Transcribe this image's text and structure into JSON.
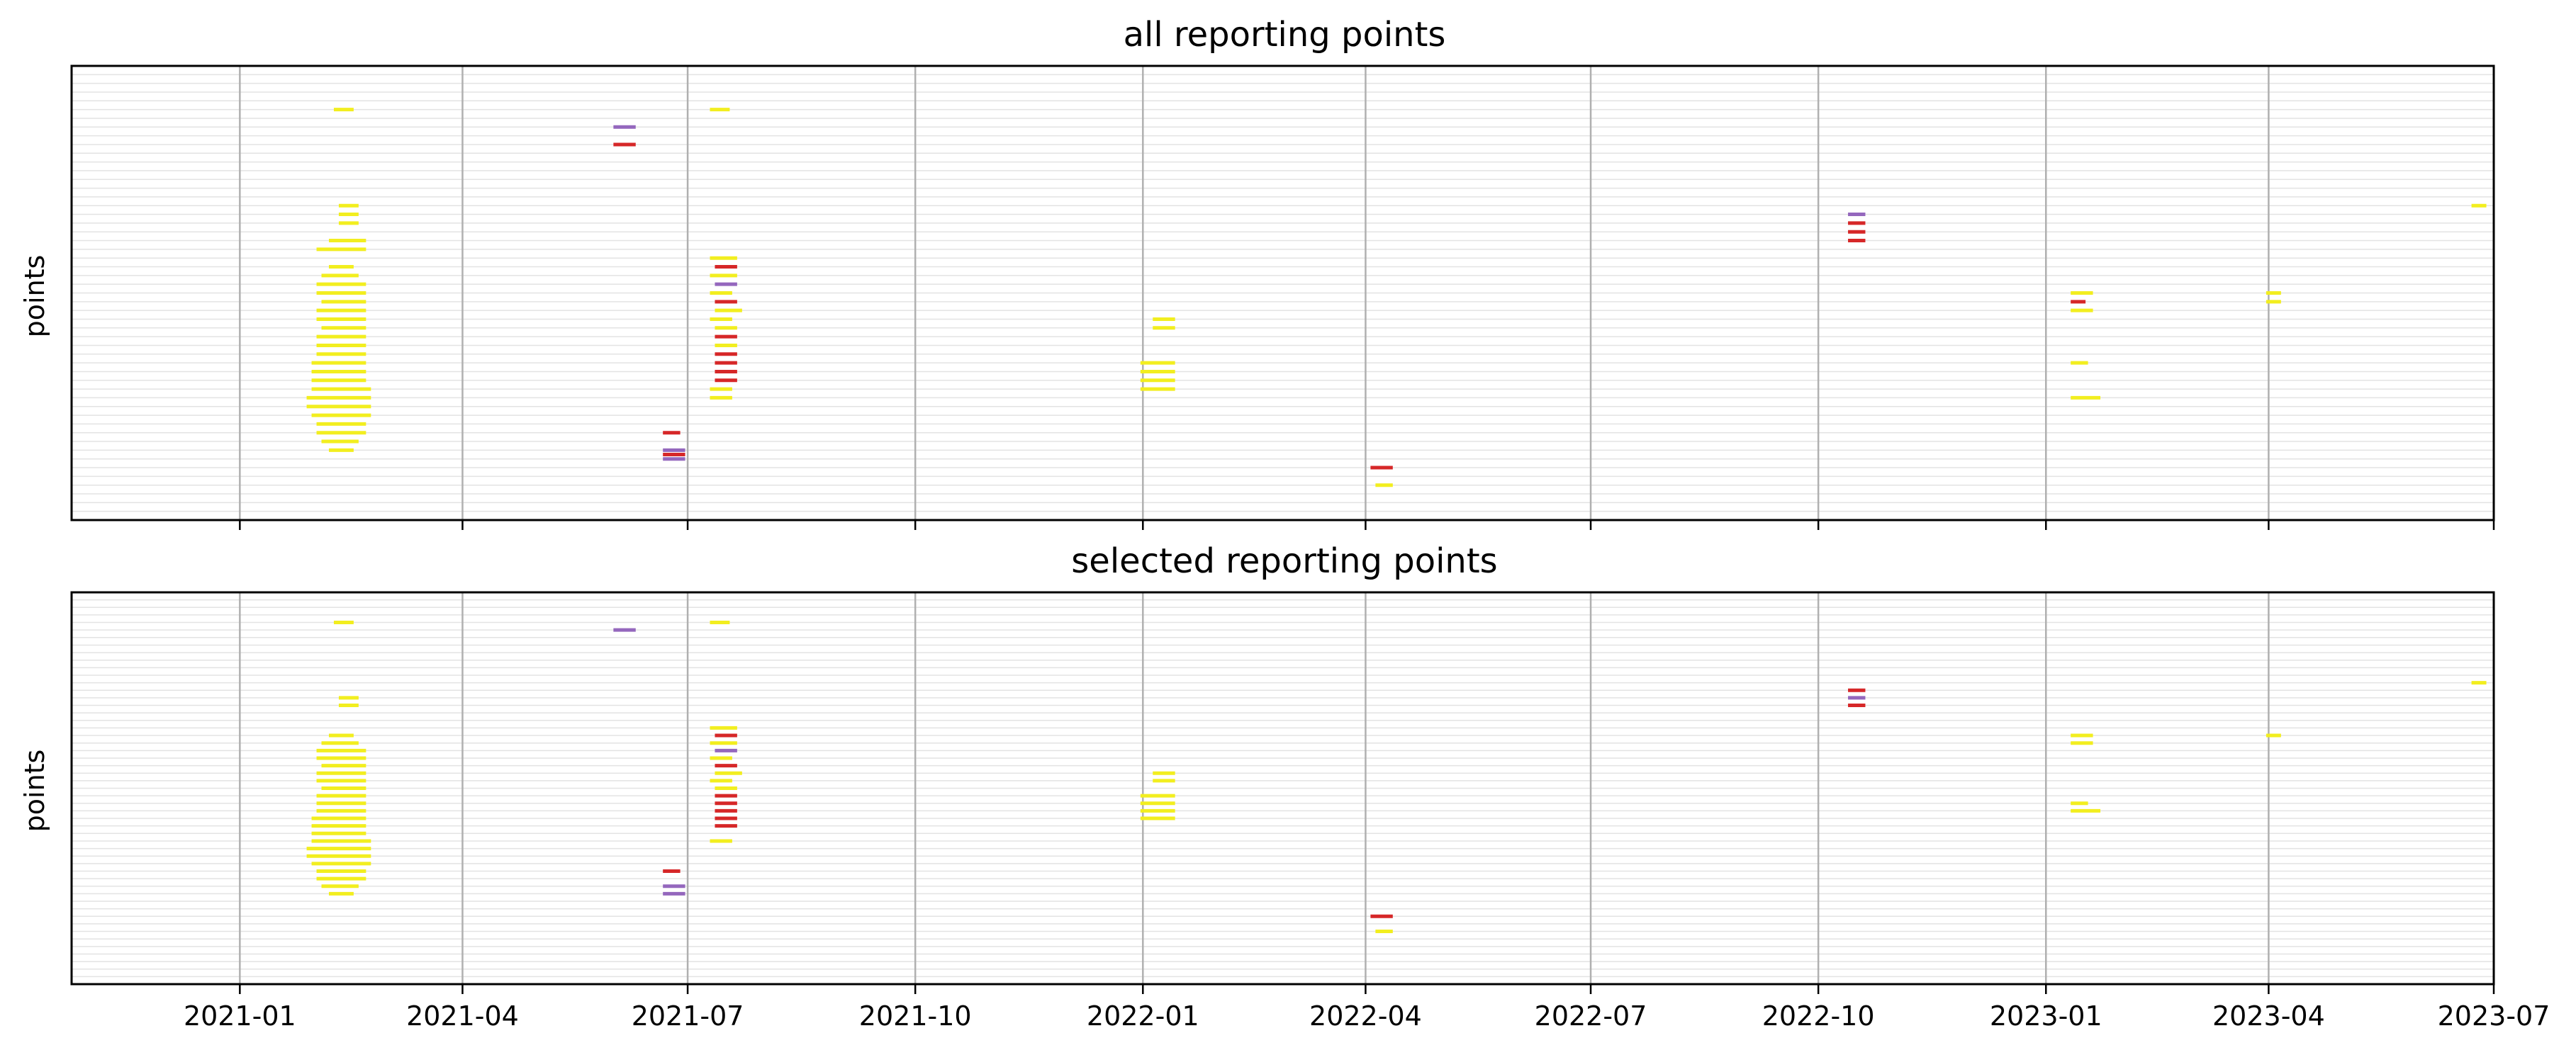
{
  "chart_data": [
    {
      "type": "timeline",
      "title": "all reporting points",
      "ylabel": "points",
      "xlabel": "",
      "xlim": [
        "2020-10-25",
        "2023-07-01"
      ],
      "ylim": [
        0,
        52
      ],
      "x_ticks": [
        "2021-01",
        "2021-04",
        "2021-07",
        "2021-10",
        "2022-01",
        "2022-04",
        "2022-07",
        "2022-10",
        "2023-01",
        "2023-04",
        "2023-07"
      ],
      "grid": "x-major vertical, y-minor horizontal",
      "colors": {
        "yellow": "#f2ee1f",
        "red": "#d62728",
        "purple": "#9467bd"
      },
      "segments": [
        {
          "y": 47,
          "start": "2021-02-08",
          "end": "2021-02-16",
          "color": "yellow"
        },
        {
          "y": 47,
          "start": "2021-07-10",
          "end": "2021-07-18",
          "color": "yellow"
        },
        {
          "y": 45,
          "start": "2021-06-01",
          "end": "2021-06-10",
          "color": "purple"
        },
        {
          "y": 43,
          "start": "2021-06-01",
          "end": "2021-06-10",
          "color": "red"
        },
        {
          "y": 36,
          "start": "2021-02-10",
          "end": "2021-02-18",
          "color": "yellow"
        },
        {
          "y": 35,
          "start": "2021-02-10",
          "end": "2021-02-18",
          "color": "yellow"
        },
        {
          "y": 34,
          "start": "2021-02-10",
          "end": "2021-02-18",
          "color": "yellow"
        },
        {
          "y": 32,
          "start": "2021-02-06",
          "end": "2021-02-21",
          "color": "yellow"
        },
        {
          "y": 31,
          "start": "2021-02-01",
          "end": "2021-02-21",
          "color": "yellow"
        },
        {
          "y": 29,
          "start": "2021-02-06",
          "end": "2021-02-16",
          "color": "yellow"
        },
        {
          "y": 28,
          "start": "2021-02-03",
          "end": "2021-02-18",
          "color": "yellow"
        },
        {
          "y": 27,
          "start": "2021-02-01",
          "end": "2021-02-21",
          "color": "yellow"
        },
        {
          "y": 26,
          "start": "2021-02-01",
          "end": "2021-02-21",
          "color": "yellow"
        },
        {
          "y": 25,
          "start": "2021-02-03",
          "end": "2021-02-21",
          "color": "yellow"
        },
        {
          "y": 24,
          "start": "2021-02-01",
          "end": "2021-02-21",
          "color": "yellow"
        },
        {
          "y": 23,
          "start": "2021-02-01",
          "end": "2021-02-21",
          "color": "yellow"
        },
        {
          "y": 22,
          "start": "2021-02-03",
          "end": "2021-02-21",
          "color": "yellow"
        },
        {
          "y": 21,
          "start": "2021-02-01",
          "end": "2021-02-21",
          "color": "yellow"
        },
        {
          "y": 20,
          "start": "2021-02-01",
          "end": "2021-02-21",
          "color": "yellow"
        },
        {
          "y": 19,
          "start": "2021-02-01",
          "end": "2021-02-21",
          "color": "yellow"
        },
        {
          "y": 18,
          "start": "2021-01-30",
          "end": "2021-02-21",
          "color": "yellow"
        },
        {
          "y": 17,
          "start": "2021-01-30",
          "end": "2021-02-21",
          "color": "yellow"
        },
        {
          "y": 16,
          "start": "2021-01-30",
          "end": "2021-02-21",
          "color": "yellow"
        },
        {
          "y": 15,
          "start": "2021-01-30",
          "end": "2021-02-23",
          "color": "yellow"
        },
        {
          "y": 14,
          "start": "2021-01-28",
          "end": "2021-02-23",
          "color": "yellow"
        },
        {
          "y": 13,
          "start": "2021-01-28",
          "end": "2021-02-23",
          "color": "yellow"
        },
        {
          "y": 12,
          "start": "2021-01-30",
          "end": "2021-02-23",
          "color": "yellow"
        },
        {
          "y": 11,
          "start": "2021-02-01",
          "end": "2021-02-21",
          "color": "yellow"
        },
        {
          "y": 10,
          "start": "2021-02-01",
          "end": "2021-02-21",
          "color": "yellow"
        },
        {
          "y": 9,
          "start": "2021-02-03",
          "end": "2021-02-18",
          "color": "yellow"
        },
        {
          "y": 8,
          "start": "2021-02-06",
          "end": "2021-02-16",
          "color": "yellow"
        },
        {
          "y": 30,
          "start": "2021-07-10",
          "end": "2021-07-21",
          "color": "yellow"
        },
        {
          "y": 29,
          "start": "2021-07-12",
          "end": "2021-07-21",
          "color": "red"
        },
        {
          "y": 28,
          "start": "2021-07-10",
          "end": "2021-07-21",
          "color": "yellow"
        },
        {
          "y": 27,
          "start": "2021-07-12",
          "end": "2021-07-21",
          "color": "purple"
        },
        {
          "y": 26,
          "start": "2021-07-10",
          "end": "2021-07-19",
          "color": "yellow"
        },
        {
          "y": 25,
          "start": "2021-07-12",
          "end": "2021-07-21",
          "color": "red"
        },
        {
          "y": 24,
          "start": "2021-07-12",
          "end": "2021-07-23",
          "color": "yellow"
        },
        {
          "y": 23,
          "start": "2021-07-10",
          "end": "2021-07-19",
          "color": "yellow"
        },
        {
          "y": 22,
          "start": "2021-07-12",
          "end": "2021-07-21",
          "color": "yellow"
        },
        {
          "y": 21,
          "start": "2021-07-12",
          "end": "2021-07-21",
          "color": "red"
        },
        {
          "y": 20,
          "start": "2021-07-12",
          "end": "2021-07-21",
          "color": "yellow"
        },
        {
          "y": 19,
          "start": "2021-07-12",
          "end": "2021-07-21",
          "color": "red"
        },
        {
          "y": 18,
          "start": "2021-07-12",
          "end": "2021-07-21",
          "color": "red"
        },
        {
          "y": 17,
          "start": "2021-07-12",
          "end": "2021-07-21",
          "color": "red"
        },
        {
          "y": 16,
          "start": "2021-07-12",
          "end": "2021-07-21",
          "color": "red"
        },
        {
          "y": 15,
          "start": "2021-07-10",
          "end": "2021-07-19",
          "color": "yellow"
        },
        {
          "y": 14,
          "start": "2021-07-10",
          "end": "2021-07-19",
          "color": "yellow"
        },
        {
          "y": 10,
          "start": "2021-06-21",
          "end": "2021-06-28",
          "color": "red"
        },
        {
          "y": 8,
          "start": "2021-06-21",
          "end": "2021-06-30",
          "color": "purple"
        },
        {
          "y": 7,
          "start": "2021-06-21",
          "end": "2021-06-30",
          "color": "purple"
        },
        {
          "y": 7.5,
          "start": "2021-06-21",
          "end": "2021-06-30",
          "color": "red"
        },
        {
          "y": 23,
          "start": "2022-01-05",
          "end": "2022-01-14",
          "color": "yellow"
        },
        {
          "y": 22,
          "start": "2022-01-05",
          "end": "2022-01-14",
          "color": "yellow"
        },
        {
          "y": 18,
          "start": "2021-12-31",
          "end": "2022-01-14",
          "color": "yellow"
        },
        {
          "y": 17,
          "start": "2021-12-31",
          "end": "2022-01-14",
          "color": "yellow"
        },
        {
          "y": 16,
          "start": "2021-12-31",
          "end": "2022-01-14",
          "color": "yellow"
        },
        {
          "y": 15,
          "start": "2021-12-31",
          "end": "2022-01-14",
          "color": "yellow"
        },
        {
          "y": 6,
          "start": "2022-04-03",
          "end": "2022-04-12",
          "color": "red"
        },
        {
          "y": 4,
          "start": "2022-04-05",
          "end": "2022-04-12",
          "color": "yellow"
        },
        {
          "y": 35,
          "start": "2022-10-13",
          "end": "2022-10-20",
          "color": "purple"
        },
        {
          "y": 34,
          "start": "2022-10-13",
          "end": "2022-10-20",
          "color": "red"
        },
        {
          "y": 33,
          "start": "2022-10-13",
          "end": "2022-10-20",
          "color": "red"
        },
        {
          "y": 32,
          "start": "2022-10-13",
          "end": "2022-10-20",
          "color": "red"
        },
        {
          "y": 26,
          "start": "2023-01-11",
          "end": "2023-01-20",
          "color": "yellow"
        },
        {
          "y": 25,
          "start": "2023-01-11",
          "end": "2023-01-17",
          "color": "red"
        },
        {
          "y": 24,
          "start": "2023-01-11",
          "end": "2023-01-20",
          "color": "yellow"
        },
        {
          "y": 26,
          "start": "2023-03-31",
          "end": "2023-04-06",
          "color": "yellow"
        },
        {
          "y": 25,
          "start": "2023-03-31",
          "end": "2023-04-06",
          "color": "yellow"
        },
        {
          "y": 18,
          "start": "2023-01-11",
          "end": "2023-01-18",
          "color": "yellow"
        },
        {
          "y": 14,
          "start": "2023-01-11",
          "end": "2023-01-23",
          "color": "yellow"
        },
        {
          "y": 36,
          "start": "2023-06-22",
          "end": "2023-06-28",
          "color": "yellow"
        }
      ]
    },
    {
      "type": "timeline",
      "title": "selected reporting points",
      "ylabel": "points",
      "xlabel": "",
      "xlim": [
        "2020-10-25",
        "2023-07-01"
      ],
      "ylim": [
        0,
        52
      ],
      "x_ticks": [
        "2021-01",
        "2021-04",
        "2021-07",
        "2021-10",
        "2022-01",
        "2022-04",
        "2022-07",
        "2022-10",
        "2023-01",
        "2023-04",
        "2023-07"
      ],
      "grid": "x-major vertical, y-minor horizontal",
      "colors": {
        "yellow": "#f2ee1f",
        "red": "#d62728",
        "purple": "#9467bd"
      },
      "segments": [
        {
          "y": 48,
          "start": "2021-02-08",
          "end": "2021-02-16",
          "color": "yellow"
        },
        {
          "y": 48,
          "start": "2021-07-10",
          "end": "2021-07-18",
          "color": "yellow"
        },
        {
          "y": 47,
          "start": "2021-06-01",
          "end": "2021-06-10",
          "color": "purple"
        },
        {
          "y": 38,
          "start": "2021-02-10",
          "end": "2021-02-18",
          "color": "yellow"
        },
        {
          "y": 37,
          "start": "2021-02-10",
          "end": "2021-02-18",
          "color": "yellow"
        },
        {
          "y": 33,
          "start": "2021-02-06",
          "end": "2021-02-16",
          "color": "yellow"
        },
        {
          "y": 32,
          "start": "2021-02-03",
          "end": "2021-02-18",
          "color": "yellow"
        },
        {
          "y": 31,
          "start": "2021-02-01",
          "end": "2021-02-21",
          "color": "yellow"
        },
        {
          "y": 30,
          "start": "2021-02-01",
          "end": "2021-02-21",
          "color": "yellow"
        },
        {
          "y": 29,
          "start": "2021-02-03",
          "end": "2021-02-21",
          "color": "yellow"
        },
        {
          "y": 28,
          "start": "2021-02-01",
          "end": "2021-02-21",
          "color": "yellow"
        },
        {
          "y": 27,
          "start": "2021-02-01",
          "end": "2021-02-21",
          "color": "yellow"
        },
        {
          "y": 26,
          "start": "2021-02-03",
          "end": "2021-02-21",
          "color": "yellow"
        },
        {
          "y": 25,
          "start": "2021-02-01",
          "end": "2021-02-21",
          "color": "yellow"
        },
        {
          "y": 24,
          "start": "2021-02-01",
          "end": "2021-02-21",
          "color": "yellow"
        },
        {
          "y": 23,
          "start": "2021-02-01",
          "end": "2021-02-21",
          "color": "yellow"
        },
        {
          "y": 22,
          "start": "2021-01-30",
          "end": "2021-02-21",
          "color": "yellow"
        },
        {
          "y": 21,
          "start": "2021-01-30",
          "end": "2021-02-21",
          "color": "yellow"
        },
        {
          "y": 20,
          "start": "2021-01-30",
          "end": "2021-02-21",
          "color": "yellow"
        },
        {
          "y": 19,
          "start": "2021-01-30",
          "end": "2021-02-23",
          "color": "yellow"
        },
        {
          "y": 18,
          "start": "2021-01-28",
          "end": "2021-02-23",
          "color": "yellow"
        },
        {
          "y": 17,
          "start": "2021-01-28",
          "end": "2021-02-23",
          "color": "yellow"
        },
        {
          "y": 16,
          "start": "2021-01-30",
          "end": "2021-02-23",
          "color": "yellow"
        },
        {
          "y": 15,
          "start": "2021-02-01",
          "end": "2021-02-21",
          "color": "yellow"
        },
        {
          "y": 14,
          "start": "2021-02-01",
          "end": "2021-02-21",
          "color": "yellow"
        },
        {
          "y": 13,
          "start": "2021-02-03",
          "end": "2021-02-18",
          "color": "yellow"
        },
        {
          "y": 12,
          "start": "2021-02-06",
          "end": "2021-02-16",
          "color": "yellow"
        },
        {
          "y": 34,
          "start": "2021-07-10",
          "end": "2021-07-21",
          "color": "yellow"
        },
        {
          "y": 33,
          "start": "2021-07-12",
          "end": "2021-07-21",
          "color": "red"
        },
        {
          "y": 32,
          "start": "2021-07-10",
          "end": "2021-07-21",
          "color": "yellow"
        },
        {
          "y": 31,
          "start": "2021-07-12",
          "end": "2021-07-21",
          "color": "purple"
        },
        {
          "y": 30,
          "start": "2021-07-10",
          "end": "2021-07-19",
          "color": "yellow"
        },
        {
          "y": 29,
          "start": "2021-07-12",
          "end": "2021-07-21",
          "color": "red"
        },
        {
          "y": 28,
          "start": "2021-07-12",
          "end": "2021-07-23",
          "color": "yellow"
        },
        {
          "y": 27,
          "start": "2021-07-10",
          "end": "2021-07-19",
          "color": "yellow"
        },
        {
          "y": 26,
          "start": "2021-07-12",
          "end": "2021-07-21",
          "color": "yellow"
        },
        {
          "y": 25,
          "start": "2021-07-12",
          "end": "2021-07-21",
          "color": "red"
        },
        {
          "y": 24,
          "start": "2021-07-12",
          "end": "2021-07-21",
          "color": "red"
        },
        {
          "y": 23,
          "start": "2021-07-12",
          "end": "2021-07-21",
          "color": "red"
        },
        {
          "y": 22,
          "start": "2021-07-12",
          "end": "2021-07-21",
          "color": "red"
        },
        {
          "y": 21,
          "start": "2021-07-12",
          "end": "2021-07-21",
          "color": "red"
        },
        {
          "y": 19,
          "start": "2021-07-10",
          "end": "2021-07-19",
          "color": "yellow"
        },
        {
          "y": 15,
          "start": "2021-06-21",
          "end": "2021-06-28",
          "color": "red"
        },
        {
          "y": 13,
          "start": "2021-06-21",
          "end": "2021-06-30",
          "color": "purple"
        },
        {
          "y": 12,
          "start": "2021-06-21",
          "end": "2021-06-30",
          "color": "purple"
        },
        {
          "y": 28,
          "start": "2022-01-05",
          "end": "2022-01-14",
          "color": "yellow"
        },
        {
          "y": 27,
          "start": "2022-01-05",
          "end": "2022-01-14",
          "color": "yellow"
        },
        {
          "y": 25,
          "start": "2021-12-31",
          "end": "2022-01-14",
          "color": "yellow"
        },
        {
          "y": 24,
          "start": "2021-12-31",
          "end": "2022-01-14",
          "color": "yellow"
        },
        {
          "y": 23,
          "start": "2021-12-31",
          "end": "2022-01-14",
          "color": "yellow"
        },
        {
          "y": 22,
          "start": "2021-12-31",
          "end": "2022-01-14",
          "color": "yellow"
        },
        {
          "y": 9,
          "start": "2022-04-03",
          "end": "2022-04-12",
          "color": "red"
        },
        {
          "y": 7,
          "start": "2022-04-05",
          "end": "2022-04-12",
          "color": "yellow"
        },
        {
          "y": 39,
          "start": "2022-10-13",
          "end": "2022-10-20",
          "color": "red"
        },
        {
          "y": 38,
          "start": "2022-10-13",
          "end": "2022-10-20",
          "color": "purple"
        },
        {
          "y": 37,
          "start": "2022-10-13",
          "end": "2022-10-20",
          "color": "red"
        },
        {
          "y": 33,
          "start": "2023-01-11",
          "end": "2023-01-20",
          "color": "yellow"
        },
        {
          "y": 32,
          "start": "2023-01-11",
          "end": "2023-01-20",
          "color": "yellow"
        },
        {
          "y": 33,
          "start": "2023-03-31",
          "end": "2023-04-06",
          "color": "yellow"
        },
        {
          "y": 24,
          "start": "2023-01-11",
          "end": "2023-01-18",
          "color": "yellow"
        },
        {
          "y": 23,
          "start": "2023-01-11",
          "end": "2023-01-23",
          "color": "yellow"
        },
        {
          "y": 40,
          "start": "2023-06-22",
          "end": "2023-06-28",
          "color": "yellow"
        }
      ]
    }
  ]
}
